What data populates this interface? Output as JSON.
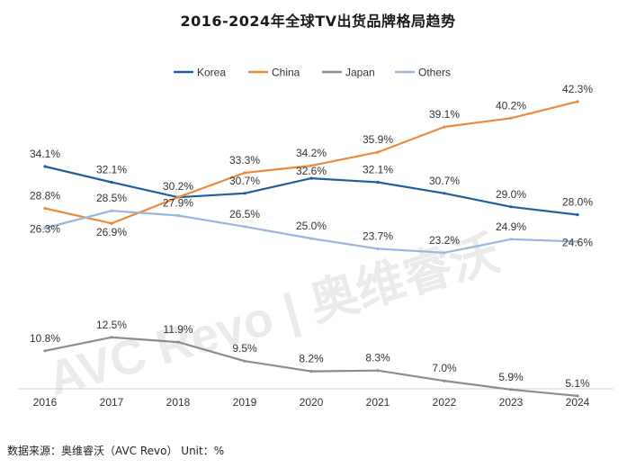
{
  "title": "2016-2024年全球TV出货品牌格局趋势",
  "source_note": "数据来源：奥维睿沃（AVC Revo） Unit：%",
  "watermark": "AVC Revo | 奥维睿沃",
  "chart_data": {
    "type": "line",
    "title": "2016-2024年全球TV出货品牌格局趋势",
    "xlabel": "",
    "ylabel": "",
    "categories": [
      "2016",
      "2017",
      "2018",
      "2019",
      "2020",
      "2021",
      "2022",
      "2023",
      "2024"
    ],
    "ylim": [
      0,
      45
    ],
    "grid": false,
    "legend_position": "top",
    "series": [
      {
        "name": "Korea",
        "color": "#1f5f9e",
        "values": [
          34.1,
          32.1,
          30.2,
          30.7,
          32.6,
          32.1,
          30.7,
          29.0,
          28.0
        ],
        "labels": [
          "34.1%",
          "32.1%",
          "30.2%",
          "30.7%",
          "32.6%",
          "32.1%",
          "30.7%",
          "29.0%",
          "28.0%"
        ]
      },
      {
        "name": "China",
        "color": "#ed8a3a",
        "values": [
          28.8,
          26.9,
          30.2,
          33.3,
          34.2,
          35.9,
          39.1,
          40.2,
          42.3
        ],
        "labels": [
          "28.8%",
          "26.9%",
          "",
          "33.3%",
          "34.2%",
          "35.9%",
          "39.1%",
          "40.2%",
          "42.3%"
        ]
      },
      {
        "name": "Japan",
        "color": "#8c8c8c",
        "values": [
          10.8,
          12.5,
          11.9,
          9.5,
          8.2,
          8.3,
          7.0,
          5.9,
          5.1
        ],
        "labels": [
          "10.8%",
          "12.5%",
          "11.9%",
          "9.5%",
          "8.2%",
          "8.3%",
          "7.0%",
          "5.9%",
          "5.1%"
        ]
      },
      {
        "name": "Others",
        "color": "#9ab5de",
        "values": [
          26.3,
          28.5,
          27.9,
          26.5,
          25.0,
          23.7,
          23.2,
          24.9,
          24.6
        ],
        "labels": [
          "26.3%",
          "28.5%",
          "27.9%",
          "26.5%",
          "25.0%",
          "23.7%",
          "23.2%",
          "24.9%",
          "24.6%"
        ]
      }
    ]
  }
}
